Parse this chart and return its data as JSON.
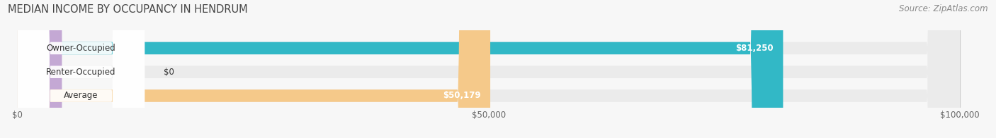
{
  "title": "MEDIAN INCOME BY OCCUPANCY IN HENDRUM",
  "source": "Source: ZipAtlas.com",
  "categories": [
    "Owner-Occupied",
    "Renter-Occupied",
    "Average"
  ],
  "values": [
    81250,
    0,
    50179
  ],
  "bar_colors": [
    "#32b8c6",
    "#c4a8d4",
    "#f5c98a"
  ],
  "value_labels": [
    "$81,250",
    "$0",
    "$50,179"
  ],
  "xlim": [
    0,
    100000
  ],
  "xticks": [
    0,
    50000,
    100000
  ],
  "xtick_labels": [
    "$0",
    "$50,000",
    "$100,000"
  ],
  "title_fontsize": 10.5,
  "source_fontsize": 8.5,
  "label_fontsize": 8.5,
  "value_fontsize": 8.5,
  "bar_height": 0.52,
  "row_bg_color": "#ebebeb",
  "white_pill_color": "#ffffff",
  "bg_color": "#f7f7f7"
}
